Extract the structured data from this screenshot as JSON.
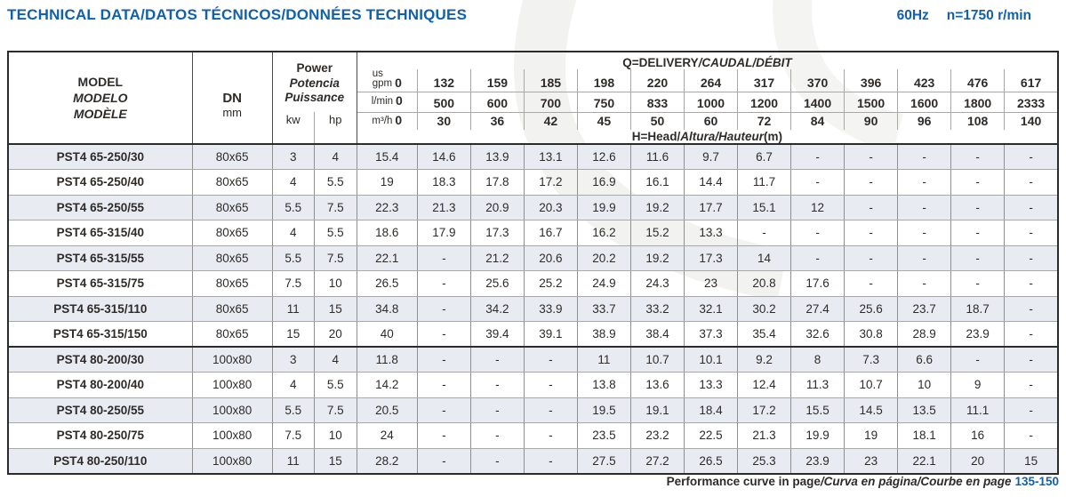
{
  "header": {
    "title_en": "TECHNICAL DATA",
    "title_intl": "/DATOS TÉCNICOS/DONNÉES TECHNIQUES",
    "frequency": "60Hz",
    "speed": "n=1750 r/min"
  },
  "table": {
    "model_header": {
      "line1": "MODEL",
      "line2": "MODELO",
      "line3": "MODÈLE"
    },
    "dn": {
      "label": "DN",
      "unit": "mm"
    },
    "power": {
      "line1": "Power",
      "line2": "Potencia",
      "line3": "Puissance",
      "unit_kw": "kw",
      "unit_hp": "hp"
    },
    "delivery": {
      "title_en": "Q=DELIVERY",
      "title_intl": "/CAUDAL/DÉBIT"
    },
    "head": {
      "title_en": "H=Head/",
      "title_intl": "Altura/Hauteur",
      "unit": "(m)"
    },
    "flow_header": [
      {
        "unit_top": "us",
        "unit": "gpm",
        "zero": "0",
        "values": [
          "132",
          "159",
          "185",
          "198",
          "220",
          "264",
          "317",
          "370",
          "396",
          "423",
          "476",
          "617"
        ]
      },
      {
        "unit": "l/min",
        "zero": "0",
        "values": [
          "500",
          "600",
          "700",
          "750",
          "833",
          "1000",
          "1200",
          "1400",
          "1500",
          "1600",
          "1800",
          "2333"
        ]
      },
      {
        "unit": "m³/h",
        "zero": "0",
        "values": [
          "30",
          "36",
          "42",
          "45",
          "50",
          "60",
          "72",
          "84",
          "90",
          "96",
          "108",
          "140"
        ]
      }
    ],
    "rows": [
      {
        "model": "PST4 65-250/30",
        "dn": "80x65",
        "kw": "3",
        "hp": "4",
        "heads": [
          "15.4",
          "14.6",
          "13.9",
          "13.1",
          "12.6",
          "11.6",
          "9.7",
          "6.7",
          "-",
          "-",
          "-",
          "-",
          "-"
        ]
      },
      {
        "model": "PST4 65-250/40",
        "dn": "80x65",
        "kw": "4",
        "hp": "5.5",
        "heads": [
          "19",
          "18.3",
          "17.8",
          "17.2",
          "16.9",
          "16.1",
          "14.4",
          "11.7",
          "-",
          "-",
          "-",
          "-",
          "-"
        ]
      },
      {
        "model": "PST4 65-250/55",
        "dn": "80x65",
        "kw": "5.5",
        "hp": "7.5",
        "heads": [
          "22.3",
          "21.3",
          "20.9",
          "20.3",
          "19.9",
          "19.2",
          "17.7",
          "15.1",
          "12",
          "-",
          "-",
          "-",
          "-"
        ]
      },
      {
        "model": "PST4 65-315/40",
        "dn": "80x65",
        "kw": "4",
        "hp": "5.5",
        "heads": [
          "18.6",
          "17.9",
          "17.3",
          "16.7",
          "16.2",
          "15.2",
          "13.3",
          "-",
          "-",
          "-",
          "-",
          "-",
          "-"
        ]
      },
      {
        "model": "PST4 65-315/55",
        "dn": "80x65",
        "kw": "5.5",
        "hp": "7.5",
        "heads": [
          "22.1",
          "-",
          "21.2",
          "20.6",
          "20.2",
          "19.2",
          "17.3",
          "14",
          "-",
          "-",
          "-",
          "-",
          "-"
        ]
      },
      {
        "model": "PST4 65-315/75",
        "dn": "80x65",
        "kw": "7.5",
        "hp": "10",
        "heads": [
          "26.5",
          "-",
          "25.6",
          "25.2",
          "24.9",
          "24.3",
          "23",
          "20.8",
          "17.6",
          "-",
          "-",
          "-",
          "-"
        ]
      },
      {
        "model": "PST4 65-315/110",
        "dn": "80x65",
        "kw": "11",
        "hp": "15",
        "heads": [
          "34.8",
          "-",
          "34.2",
          "33.9",
          "33.7",
          "33.2",
          "32.1",
          "30.2",
          "27.4",
          "25.6",
          "23.7",
          "18.7",
          "-"
        ]
      },
      {
        "model": "PST4 65-315/150",
        "dn": "80x65",
        "kw": "15",
        "hp": "20",
        "heads": [
          "40",
          "-",
          "39.4",
          "39.1",
          "38.9",
          "38.4",
          "37.3",
          "35.4",
          "32.6",
          "30.8",
          "28.9",
          "23.9",
          "-"
        ]
      },
      {
        "model": "PST4 80-200/30",
        "dn": "100x80",
        "kw": "3",
        "hp": "4",
        "heads": [
          "11.8",
          "-",
          "-",
          "-",
          "11",
          "10.7",
          "10.1",
          "9.2",
          "8",
          "7.3",
          "6.6",
          "-",
          "-"
        ],
        "group_start": true
      },
      {
        "model": "PST4 80-200/40",
        "dn": "100x80",
        "kw": "4",
        "hp": "5.5",
        "heads": [
          "14.2",
          "-",
          "-",
          "-",
          "13.8",
          "13.6",
          "13.3",
          "12.4",
          "11.3",
          "10.7",
          "10",
          "9",
          "-"
        ]
      },
      {
        "model": "PST4 80-250/55",
        "dn": "100x80",
        "kw": "5.5",
        "hp": "7.5",
        "heads": [
          "20.5",
          "-",
          "-",
          "-",
          "19.5",
          "19.1",
          "18.4",
          "17.2",
          "15.5",
          "14.5",
          "13.5",
          "11.1",
          "-"
        ]
      },
      {
        "model": "PST4 80-250/75",
        "dn": "100x80",
        "kw": "7.5",
        "hp": "10",
        "heads": [
          "24",
          "-",
          "-",
          "-",
          "23.5",
          "23.2",
          "22.5",
          "21.3",
          "19.9",
          "19",
          "18.1",
          "16",
          "-"
        ]
      },
      {
        "model": "PST4 80-250/110",
        "dn": "100x80",
        "kw": "11",
        "hp": "15",
        "heads": [
          "28.2",
          "-",
          "-",
          "-",
          "27.5",
          "27.2",
          "26.5",
          "25.3",
          "23.9",
          "23",
          "22.1",
          "20",
          "15"
        ]
      }
    ]
  },
  "footer": {
    "text_en": "Performance curve in page",
    "text_intl": "/Curva en página/Courbe en page",
    "pages": "135-150"
  },
  "colors": {
    "accent_blue": "#1160ab",
    "row_shade": "#e9ebf3",
    "text": "#2e2b28",
    "grid_dark": "#2b2b2b"
  }
}
